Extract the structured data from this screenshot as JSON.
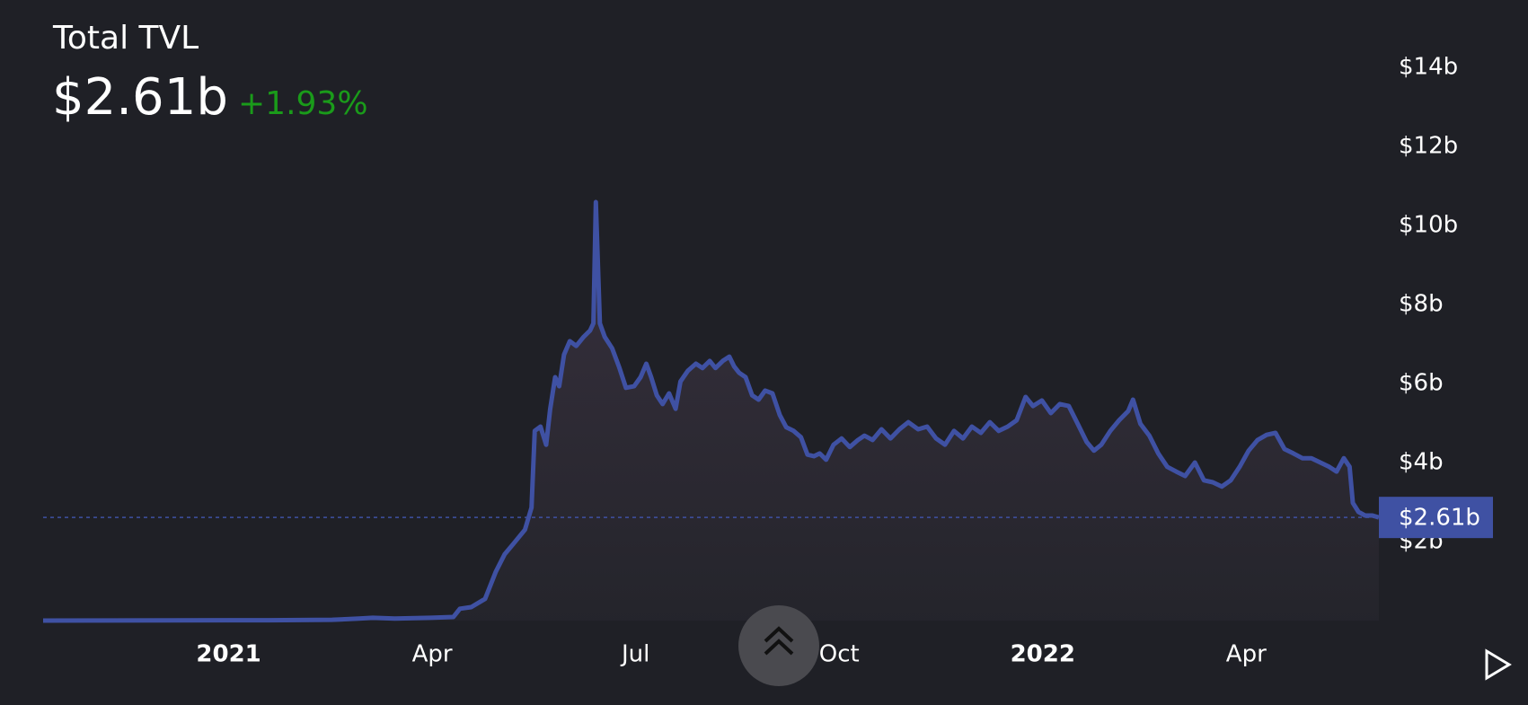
{
  "chart_data": {
    "type": "area",
    "title": "Total TVL",
    "current_label": "$2.61b",
    "change": "+1.93%",
    "color": "#3f51a3",
    "change_color": "#1a9b1a",
    "x": [
      2020.772,
      2021.05,
      2021.127,
      2021.16,
      2021.177,
      2021.204,
      2021.248,
      2021.276,
      2021.284,
      2021.298,
      2021.315,
      2021.328,
      2021.339,
      2021.35,
      2021.364,
      2021.372,
      2021.376,
      2021.383,
      2021.39,
      2021.395,
      2021.401,
      2021.406,
      2021.412,
      2021.419,
      2021.427,
      2021.436,
      2021.444,
      2021.448,
      2021.451,
      2021.456,
      2021.462,
      2021.471,
      2021.48,
      2021.488,
      2021.498,
      2021.506,
      2021.513,
      2021.519,
      2021.526,
      2021.533,
      2021.541,
      2021.549,
      2021.555,
      2021.564,
      2021.574,
      2021.582,
      2021.591,
      2021.598,
      2021.607,
      2021.615,
      2021.621,
      2021.627,
      2021.635,
      2021.643,
      2021.651,
      2021.659,
      2021.668,
      2021.677,
      2021.685,
      2021.694,
      2021.703,
      2021.711,
      2021.719,
      2021.726,
      2021.734,
      2021.743,
      2021.753,
      2021.763,
      2021.773,
      2021.781,
      2021.791,
      2021.802,
      2021.813,
      2021.824,
      2021.835,
      2021.847,
      2021.858,
      2021.869,
      2021.88,
      2021.891,
      2021.902,
      2021.913,
      2021.924,
      2021.935,
      2021.946,
      2021.957,
      2021.968,
      2021.979,
      2021.988,
      2021.999,
      2022.01,
      2022.021,
      2022.032,
      2022.043,
      2022.054,
      2022.063,
      2022.072,
      2022.083,
      2022.094,
      2022.105,
      2022.111,
      2022.12,
      2022.131,
      2022.142,
      2022.153,
      2022.164,
      2022.175,
      2022.187,
      2022.198,
      2022.209,
      2022.22,
      2022.231,
      2022.242,
      2022.253,
      2022.264,
      2022.275,
      2022.286,
      2022.297,
      2022.308,
      2022.319,
      2022.33,
      2022.341,
      2022.352,
      2022.361,
      2022.37,
      2022.377,
      2022.381,
      2022.388,
      2022.396,
      2022.405,
      2022.413
    ],
    "series": [
      {
        "name": "Total TVL",
        "values": [
          0,
          0.01,
          0.02,
          0.05,
          0.07,
          0.05,
          0.07,
          0.09,
          0.3,
          0.34,
          0.55,
          1.23,
          1.68,
          1.95,
          2.3,
          2.86,
          4.8,
          4.91,
          4.45,
          5.36,
          6.16,
          5.93,
          6.73,
          7.07,
          6.95,
          7.18,
          7.34,
          7.52,
          10.59,
          7.52,
          7.18,
          6.89,
          6.39,
          5.89,
          5.93,
          6.16,
          6.5,
          6.16,
          5.7,
          5.48,
          5.75,
          5.36,
          6.05,
          6.32,
          6.5,
          6.39,
          6.57,
          6.39,
          6.57,
          6.68,
          6.43,
          6.27,
          6.16,
          5.7,
          5.59,
          5.82,
          5.75,
          5.2,
          4.89,
          4.8,
          4.64,
          4.2,
          4.16,
          4.23,
          4.07,
          4.45,
          4.61,
          4.39,
          4.57,
          4.68,
          4.57,
          4.84,
          4.61,
          4.84,
          5.02,
          4.84,
          4.91,
          4.61,
          4.45,
          4.8,
          4.61,
          4.91,
          4.75,
          5.02,
          4.8,
          4.91,
          5.07,
          5.66,
          5.43,
          5.57,
          5.25,
          5.48,
          5.43,
          4.98,
          4.52,
          4.3,
          4.45,
          4.8,
          5.07,
          5.3,
          5.59,
          4.98,
          4.68,
          4.23,
          3.89,
          3.77,
          3.66,
          4.0,
          3.55,
          3.5,
          3.39,
          3.55,
          3.89,
          4.3,
          4.57,
          4.7,
          4.75,
          4.34,
          4.23,
          4.11,
          4.11,
          4.0,
          3.89,
          3.77,
          4.11,
          3.89,
          2.98,
          2.75,
          2.66,
          2.66,
          2.61
        ]
      }
    ],
    "xlim": [
      2020.772,
      2022.413
    ],
    "xticks": [
      {
        "value": 2021,
        "label": "2021"
      },
      {
        "value": 2021.25,
        "label": "Apr"
      },
      {
        "value": 2021.5,
        "label": "Jul"
      },
      {
        "value": 2021.75,
        "label": "Oct"
      },
      {
        "value": 2022,
        "label": "2022"
      },
      {
        "value": 2022.25,
        "label": "Apr"
      }
    ],
    "ylim": [
      0,
      14.5
    ],
    "yticks": [
      {
        "value": 2,
        "label": "$2b"
      },
      {
        "value": 4,
        "label": "$4b"
      },
      {
        "value": 6,
        "label": "$6b"
      },
      {
        "value": 8,
        "label": "$8b"
      },
      {
        "value": 10,
        "label": "$10b"
      },
      {
        "value": 12,
        "label": "$12b"
      },
      {
        "value": 14,
        "label": "$14b"
      }
    ]
  }
}
